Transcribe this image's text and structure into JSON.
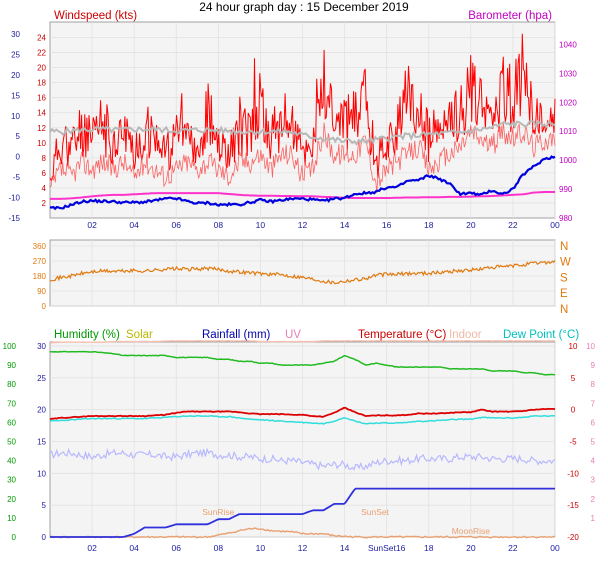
{
  "chart_data": [
    {
      "type": "line",
      "title": "24 hour graph day : 15 December 2019",
      "left_title": "Windspeed (kts)",
      "right_title": "Barometer (hpa)",
      "colors": {
        "left_title": "#cc0000",
        "right_title": "#c000c0",
        "wind": "#ff0000",
        "gust": "#ff0000",
        "avg": "#b8b8b8",
        "baro": "#ff33cc",
        "temp_line": "#0000dd"
      },
      "ylim_left": [
        0,
        25
      ],
      "ylim_outer": [
        -15,
        30
      ],
      "ylim_right": [
        980,
        1045
      ],
      "left_ticks": [
        "2",
        "4",
        "6",
        "8",
        "10",
        "12",
        "14",
        "16",
        "18",
        "20",
        "22",
        "24"
      ],
      "outer_ticks": [
        "-15",
        "-10",
        "-5",
        "0",
        "5",
        "10",
        "15",
        "20",
        "25",
        "30"
      ],
      "right_ticks": [
        "980",
        "990",
        "1000",
        "1010",
        "1020",
        "1030",
        "1040"
      ],
      "x_ticks": [
        "02",
        "04",
        "06",
        "08",
        "10",
        "12",
        "14",
        "16",
        "18",
        "20",
        "22",
        "00"
      ],
      "series": [
        {
          "key": "gust",
          "values": [
            6,
            14,
            12,
            16,
            13,
            17,
            13,
            15,
            12,
            16,
            13,
            11,
            14,
            14,
            13,
            16,
            12,
            12,
            15,
            15,
            19,
            14,
            17,
            16,
            11,
            13,
            24,
            17,
            17,
            17,
            20,
            10,
            13,
            16,
            18,
            19,
            14,
            15,
            16,
            19,
            22,
            20,
            18,
            22,
            21,
            23,
            19,
            13,
            16
          ]
        },
        {
          "key": "wind",
          "values": [
            4,
            7,
            6,
            8,
            7,
            8,
            7,
            8,
            6,
            8,
            7,
            6,
            7,
            8,
            7,
            8,
            7,
            6,
            8,
            8,
            9,
            7,
            9,
            9,
            6,
            7,
            12,
            9,
            9,
            9,
            11,
            5,
            7,
            8,
            9,
            10,
            7,
            8,
            9,
            10,
            12,
            11,
            10,
            12,
            11,
            12,
            10,
            11,
            11
          ]
        },
        {
          "key": "avg",
          "values": [
            11.5,
            11.5,
            11.6,
            11.7,
            11.8,
            11.8,
            11.7,
            11.7,
            11.8,
            11.8,
            11.8,
            11.7,
            11.6,
            11.6,
            11.7,
            11.7,
            11.6,
            11.6,
            11.5,
            11.5,
            11.5,
            11.5,
            11.5,
            11.4,
            11.0,
            10.8,
            10.6,
            10.4,
            10.2,
            10.2,
            10.2,
            10.4,
            10.6,
            10.8,
            10.9,
            11.0,
            11.1,
            11.2,
            11.3,
            11.4,
            11.6,
            11.8,
            12,
            12.5,
            12.5,
            12.5,
            12.5,
            12.5,
            12.5
          ]
        },
        {
          "key": "baro",
          "values": [
            986.6,
            986.6,
            986.8,
            987.1,
            987.5,
            987.8,
            988,
            988,
            988.2,
            988.4,
            988.6,
            988.6,
            988.6,
            988.6,
            988.6,
            988.6,
            988.6,
            988.3,
            988,
            987.8,
            987.7,
            987.7,
            987.6,
            987.6,
            987.5,
            987.5,
            987.3,
            987.2,
            987,
            986.9,
            986.9,
            986.9,
            986.9,
            987,
            987.1,
            987.1,
            987.2,
            987.2,
            987.3,
            987.3,
            987.4,
            987.5,
            987.6,
            987.8,
            988,
            988.2,
            988.8,
            989,
            989
          ]
        },
        {
          "key": "temp_line",
          "values": [
            -12.6,
            -12.6,
            -11.8,
            -11,
            -10.8,
            -10.9,
            -11,
            -11.2,
            -11.2,
            -11.1,
            -10.7,
            -10.3,
            -10.2,
            -10.9,
            -11.4,
            -11.3,
            -11.8,
            -11.7,
            -11.7,
            -11.2,
            -10.6,
            -11,
            -10.6,
            -10.3,
            -10.3,
            -10.5,
            -10.9,
            -10.3,
            -10.1,
            -9.1,
            -8.9,
            -8.6,
            -7.5,
            -7.5,
            -5.9,
            -5.8,
            -4.6,
            -5.4,
            -6.7,
            -9.1,
            -8.9,
            -9.4,
            -8.2,
            -9.2,
            -7.9,
            -4.3,
            -2.4,
            -0.5,
            0
          ]
        }
      ]
    },
    {
      "type": "line",
      "ylim": [
        0,
        360
      ],
      "y_ticks": [
        "0",
        "90",
        "180",
        "270",
        "360"
      ],
      "compass": [
        "N",
        "W",
        "S",
        "E",
        "N"
      ],
      "colors": {
        "dir": "#e07a10",
        "compass": "#e07a10"
      },
      "series": [
        {
          "key": "dir",
          "values": [
            160,
            170,
            180,
            195,
            205,
            210,
            208,
            210,
            212,
            210,
            215,
            222,
            224,
            220,
            222,
            225,
            220,
            210,
            205,
            200,
            195,
            190,
            188,
            180,
            172,
            162,
            150,
            140,
            150,
            158,
            165,
            185,
            190,
            190,
            195,
            196,
            198,
            200,
            208,
            212,
            215,
            222,
            232,
            235,
            240,
            248,
            256,
            262,
            266
          ]
        }
      ]
    },
    {
      "type": "line",
      "legend": [
        {
          "label": "Humidity (%)",
          "color": "#009900"
        },
        {
          "label": "Solar",
          "color": "#b8b800"
        },
        {
          "label": "Rainfall (mm)",
          "color": "#0000aa"
        },
        {
          "label": "UV",
          "color": "#e67fb3"
        },
        {
          "label": "Temperature (°C)",
          "color": "#cc0000"
        },
        {
          "label": "Indoor",
          "color": "#f0b8a8"
        },
        {
          "label": "Dew Point (°C)",
          "color": "#00c0c0"
        }
      ],
      "ylim_rain": [
        0,
        30
      ],
      "ylim_humidity": [
        0,
        100
      ],
      "ylim_temp": [
        -20,
        10
      ],
      "rain_ticks": [
        "0",
        "5",
        "10",
        "15",
        "20",
        "25",
        "30"
      ],
      "humidity_ticks": [
        "0",
        "10",
        "20",
        "30",
        "40",
        "50",
        "60",
        "70",
        "80",
        "90",
        "100"
      ],
      "temp_ticks": [
        "-20",
        "-15",
        "-10",
        "-5",
        "0",
        "5",
        "10"
      ],
      "uv_ticks": [
        "1",
        "2",
        "3",
        "4",
        "5",
        "6",
        "7",
        "8",
        "9",
        "10"
      ],
      "x_ticks": [
        "02",
        "04",
        "06",
        "08",
        "10",
        "12",
        "14",
        "SunSet16",
        "18",
        "20",
        "22",
        "00"
      ],
      "annotations": [
        {
          "text": "SunRise",
          "x": 8.0,
          "color": "#e8a070"
        },
        {
          "text": "SunSet",
          "x": 15.45,
          "color": "#e8a070"
        },
        {
          "text": "MoonRise",
          "x": 20.0,
          "color": "#e8a070"
        }
      ],
      "series": [
        {
          "key": "humidity",
          "color": "#22bb22",
          "values": [
            97,
            97,
            97,
            97,
            97,
            96.5,
            96,
            95,
            95,
            95,
            95,
            95,
            94,
            94,
            94,
            94,
            93,
            93,
            92,
            92,
            91,
            91,
            90,
            90,
            90,
            90,
            91,
            92,
            95,
            93,
            90,
            91,
            90,
            89,
            89,
            89,
            89,
            89,
            88,
            88,
            88,
            88,
            87,
            87,
            87,
            86,
            86,
            85,
            85
          ]
        },
        {
          "key": "temperature",
          "color": "#dd0000",
          "values": [
            -1.5,
            -1.3,
            -1.2,
            -1.1,
            -1,
            -1,
            -1,
            -1,
            -1,
            -1,
            -0.9,
            -0.8,
            -0.5,
            -0.3,
            -0.3,
            -0.3,
            -0.3,
            -0.3,
            -0.4,
            -0.6,
            -0.7,
            -0.7,
            -0.7,
            -0.8,
            -0.8,
            -1.0,
            -1.1,
            -0.5,
            0.3,
            -0.4,
            -1.0,
            -0.9,
            -0.9,
            -0.9,
            -0.8,
            -0.6,
            -0.6,
            -0.6,
            -0.5,
            -0.4,
            -0.4,
            0.0,
            -0.3,
            -0.3,
            -0.3,
            -0.2,
            0.0,
            0.1,
            0.1
          ]
        },
        {
          "key": "dewpoint",
          "color": "#33dddd",
          "values": [
            -1.8,
            -1.7,
            -1.6,
            -1.5,
            -1.4,
            -1.4,
            -1.4,
            -1.4,
            -1.4,
            -1.4,
            -1.3,
            -1.2,
            -1.1,
            -1.0,
            -1.0,
            -1.0,
            -1.1,
            -1.1,
            -1.3,
            -1.5,
            -1.6,
            -1.7,
            -1.8,
            -1.9,
            -2.0,
            -2.1,
            -2.2,
            -1.8,
            -1.2,
            -1.8,
            -2.2,
            -2.1,
            -2.1,
            -2.1,
            -2.0,
            -1.8,
            -1.8,
            -1.7,
            -1.6,
            -1.5,
            -1.5,
            -1.2,
            -1.3,
            -1.3,
            -1.3,
            -1.2,
            -1.0,
            -1.0,
            -1.0
          ]
        },
        {
          "key": "indoor",
          "color": "#f5c0b0",
          "values": [
            10.5,
            10.6,
            10.6,
            10.6,
            10.6,
            10.6,
            10.7,
            10.7,
            10.7,
            10.7,
            10.7,
            10.8,
            10.8,
            10.8,
            10.8,
            10.8,
            10.8,
            10.8,
            10.8,
            10.8,
            10.7,
            10.7,
            10.7,
            10.7,
            10.7,
            10.7,
            10.8,
            10.8,
            10.8,
            10.8,
            10.8,
            10.8,
            10.8,
            10.8,
            10.8,
            10.8,
            10.8,
            10.8,
            10.8,
            10.8,
            10.8,
            10.8,
            10.8,
            10.8,
            10.8,
            10.8,
            10.8,
            10.8,
            10.8
          ]
        },
        {
          "key": "humid_inside",
          "color": "#b8b8ff",
          "values": [
            43,
            44,
            44,
            43,
            42,
            43,
            44,
            44,
            43,
            43,
            43,
            42,
            42,
            43,
            44,
            44,
            43,
            43,
            42,
            42,
            41,
            41,
            40,
            40,
            39,
            38,
            37,
            38,
            38,
            36,
            37,
            39,
            40,
            40,
            40,
            41,
            41,
            41,
            41,
            42,
            42,
            42,
            41,
            41,
            41,
            41,
            40,
            40,
            40
          ]
        },
        {
          "key": "rainfall",
          "color": "#3030dd",
          "values": [
            0,
            0,
            0,
            0,
            0,
            0,
            0,
            0,
            0.5,
            1.5,
            1.5,
            1.5,
            2,
            2,
            2,
            2,
            2.8,
            2.8,
            3.6,
            3.6,
            3.6,
            3.6,
            3.6,
            3.6,
            3.6,
            4.2,
            4.2,
            5.2,
            5.2,
            7.6,
            7.6,
            7.6,
            7.6,
            7.6,
            7.6,
            7.6,
            7.6,
            7.6,
            7.6,
            7.6,
            7.6,
            7.6,
            7.6,
            7.6,
            7.6,
            7.6,
            7.6,
            7.6,
            7.6
          ]
        },
        {
          "key": "solar",
          "color": "#e8a070",
          "values": [
            0,
            0,
            0,
            0,
            0,
            0,
            0,
            0,
            0,
            0,
            0,
            0,
            0,
            0,
            0,
            0,
            0.3,
            0.6,
            1.0,
            1.3,
            1.3,
            1.0,
            0.9,
            0.8,
            0.5,
            0.5,
            0.5,
            0.2,
            0.1,
            0,
            0,
            0,
            0,
            0,
            0,
            0,
            0,
            0,
            0,
            0,
            0,
            0,
            0,
            0,
            0,
            0,
            0,
            0,
            0
          ]
        }
      ]
    }
  ]
}
